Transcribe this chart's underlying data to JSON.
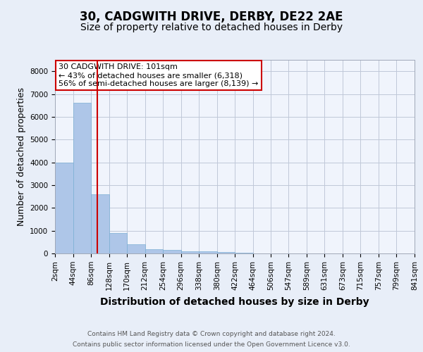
{
  "title_line1": "30, CADGWITH DRIVE, DERBY, DE22 2AE",
  "title_line2": "Size of property relative to detached houses in Derby",
  "xlabel": "Distribution of detached houses by size in Derby",
  "ylabel": "Number of detached properties",
  "footer_line1": "Contains HM Land Registry data © Crown copyright and database right 2024.",
  "footer_line2": "Contains public sector information licensed under the Open Government Licence v3.0.",
  "annotation_line1": "30 CADGWITH DRIVE: 101sqm",
  "annotation_line2": "← 43% of detached houses are smaller (6,318)",
  "annotation_line3": "56% of semi-detached houses are larger (8,139) →",
  "property_sqm": 101,
  "bin_edges": [
    2,
    44,
    86,
    128,
    170,
    212,
    254,
    296,
    338,
    380,
    422,
    464,
    506,
    547,
    589,
    631,
    673,
    715,
    757,
    799,
    841
  ],
  "bar_heights": [
    4000,
    6600,
    2600,
    900,
    400,
    200,
    150,
    100,
    80,
    60,
    40,
    0,
    0,
    0,
    0,
    0,
    0,
    0,
    0,
    0
  ],
  "bar_color": "#aec6e8",
  "bar_edge_color": "#7bafd4",
  "highlight_color": "#cc0000",
  "bg_color": "#e8eef8",
  "plot_bg_color": "#f0f4fc",
  "ylim": [
    0,
    8500
  ],
  "yticks": [
    0,
    1000,
    2000,
    3000,
    4000,
    5000,
    6000,
    7000,
    8000
  ],
  "grid_color": "#c0c8d8",
  "annotation_box_color": "#cc0000",
  "title_fontsize": 12,
  "subtitle_fontsize": 10,
  "tick_fontsize": 7.5,
  "ylabel_fontsize": 9,
  "xlabel_fontsize": 10,
  "footer_fontsize": 6.5
}
